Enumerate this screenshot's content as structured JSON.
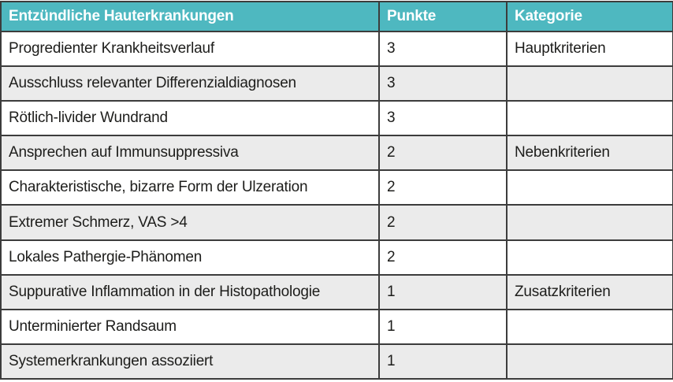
{
  "table": {
    "columns": [
      {
        "label": "Entzündliche Hauterkrankungen"
      },
      {
        "label": "Punkte"
      },
      {
        "label": "Kategorie"
      }
    ],
    "rows": [
      {
        "criterion": "Progredienter Krankheitsverlauf",
        "points": "3",
        "category": "Hauptkriterien"
      },
      {
        "criterion": "Ausschluss relevanter Differenzialdiagnosen",
        "points": "3",
        "category": ""
      },
      {
        "criterion": "Rötlich-livider Wundrand",
        "points": "3",
        "category": ""
      },
      {
        "criterion": "Ansprechen auf Immunsuppressiva",
        "points": "2",
        "category": "Nebenkriterien"
      },
      {
        "criterion": "Charakteristische, bizarre Form der Ulzeration",
        "points": "2",
        "category": ""
      },
      {
        "criterion": "Extremer Schmerz, VAS >4",
        "points": "2",
        "category": ""
      },
      {
        "criterion": "Lokales Pathergie-Phänomen",
        "points": "2",
        "category": ""
      },
      {
        "criterion": "Suppurative Inflammation in der Histopathologie",
        "points": "1",
        "category": "Zusatzkriterien"
      },
      {
        "criterion": "Unterminierter Randsaum",
        "points": "1",
        "category": ""
      },
      {
        "criterion": "Systemerkrankungen assoziiert",
        "points": "1",
        "category": ""
      }
    ]
  },
  "colors": {
    "header_bg": "#4eb8c0",
    "header_text": "#ffffff",
    "row_bg": "#ffffff",
    "row_alt_bg": "#ebebeb",
    "body_text": "#1d1d1b",
    "inner_border": "#3c3c3c",
    "outer_border": "#141414"
  }
}
